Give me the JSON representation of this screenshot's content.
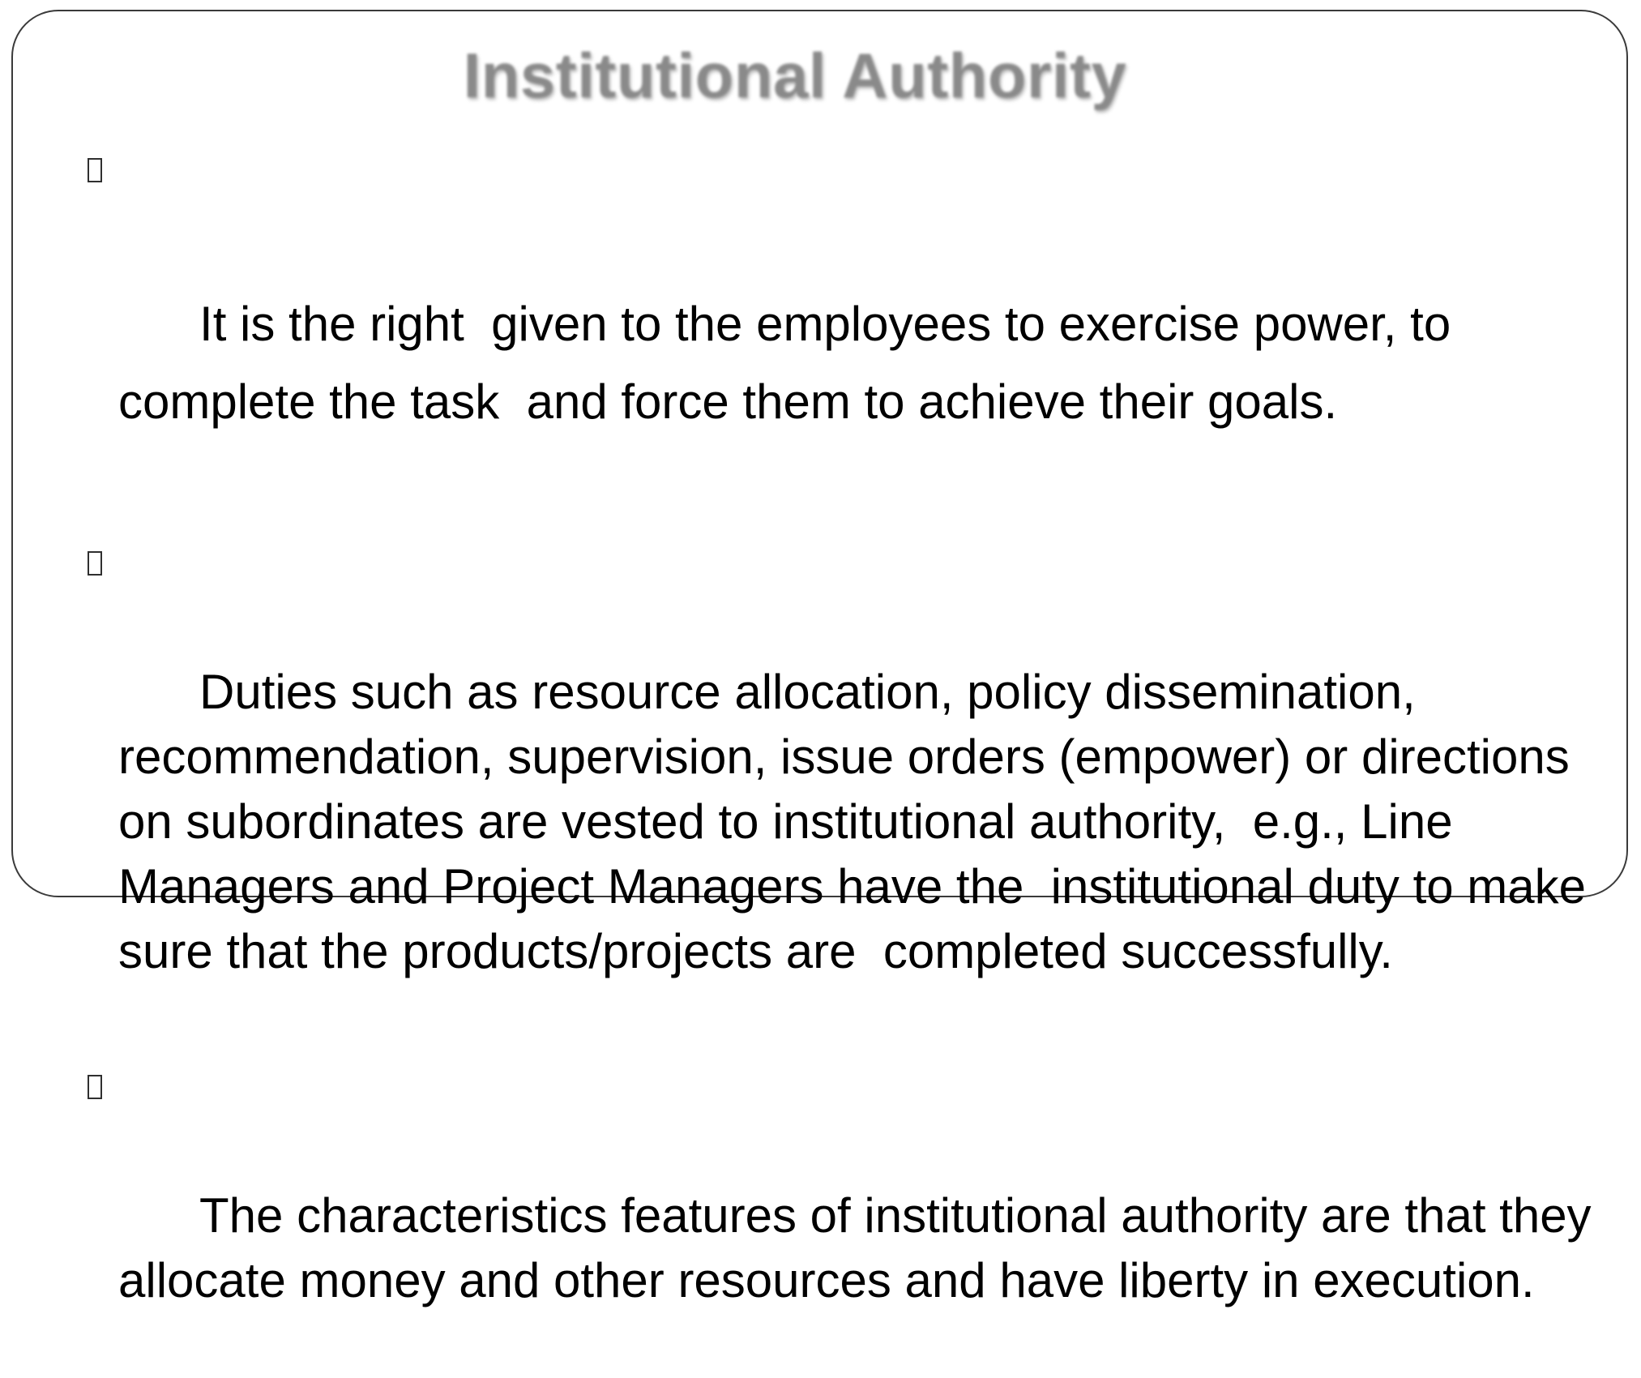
{
  "slide": {
    "title": "Institutional Authority",
    "bullets": [
      {
        "text": "It is the right  given to the employees to exercise power, to complete the task  and force them to achieve their goals."
      },
      {
        "text": "Duties such as resource allocation, policy dissemination, recommendation, supervision, issue orders (empower) or directions on subordinates are vested to institutional authority,  e.g., Line Managers and Project Managers have the  institutional duty to make sure that the products/projects are  completed successfully."
      },
      {
        "text": "The characteristics features of institutional authority are that they allocate money and other resources and have liberty in execution."
      }
    ]
  }
}
